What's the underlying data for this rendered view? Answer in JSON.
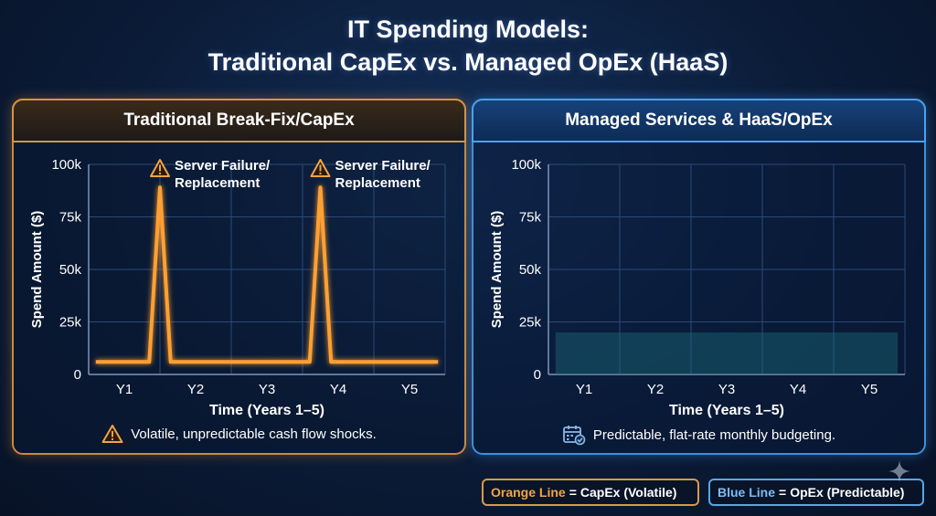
{
  "title_line1": "IT Spending Models:",
  "title_line2": "Traditional CapEx vs. Managed OpEx (HaaS)",
  "colors": {
    "capex": "#ffa030",
    "opex": "#3fd3ee",
    "grid": "#2a4a78"
  },
  "chart_data": [
    {
      "type": "line",
      "title": "Traditional Break-Fix/CapEx",
      "xlabel": "Time (Years 1–5)",
      "ylabel": "Spend Amount ($)",
      "categories": [
        "Y1",
        "Y2",
        "Y3",
        "Y4",
        "Y5"
      ],
      "ylim": [
        0,
        100000
      ],
      "yticks": [
        "0",
        "25k",
        "50k",
        "75k",
        "100k"
      ],
      "grid": true,
      "series": [
        {
          "points": [
            {
              "x": 0.6,
              "y": 6000
            },
            {
              "x": 1.35,
              "y": 6000
            },
            {
              "x": 1.5,
              "y": 89000
            },
            {
              "x": 1.65,
              "y": 6000
            },
            {
              "x": 3.6,
              "y": 6000
            },
            {
              "x": 3.75,
              "y": 89000
            },
            {
              "x": 3.9,
              "y": 6000
            },
            {
              "x": 5.4,
              "y": 6000
            }
          ]
        }
      ],
      "annotations": [
        {
          "x": 1.5,
          "label_line1": "Server Failure/",
          "label_line2": "Replacement",
          "icon": "warning-icon"
        },
        {
          "x": 3.75,
          "label_line1": "Server Failure/",
          "label_line2": "Replacement",
          "icon": "warning-icon"
        }
      ],
      "footnote": "Volatile, unpredictable cash flow shocks.",
      "footnote_icon": "warning-icon"
    },
    {
      "type": "area",
      "title": "Managed Services & HaaS/OpEx",
      "xlabel": "Time (Years 1–5)",
      "ylabel": "Spend Amount ($)",
      "categories": [
        "Y1",
        "Y2",
        "Y3",
        "Y4",
        "Y5"
      ],
      "ylim": [
        0,
        100000
      ],
      "yticks": [
        "0",
        "25k",
        "50k",
        "75k",
        "100k"
      ],
      "grid": true,
      "series": [
        {
          "points": [
            {
              "x": 0.6,
              "y": 20000
            },
            {
              "x": 5.4,
              "y": 20000
            }
          ]
        }
      ],
      "footnote": "Predictable, flat-rate monthly budgeting.",
      "footnote_icon": "calendar-check-icon"
    }
  ],
  "legend": {
    "orange_key": "Orange Line",
    "orange_value": "CapEx (Volatile)",
    "blue_key": "Blue Line",
    "blue_value": "OpEx (Predictable)",
    "equals": "="
  }
}
